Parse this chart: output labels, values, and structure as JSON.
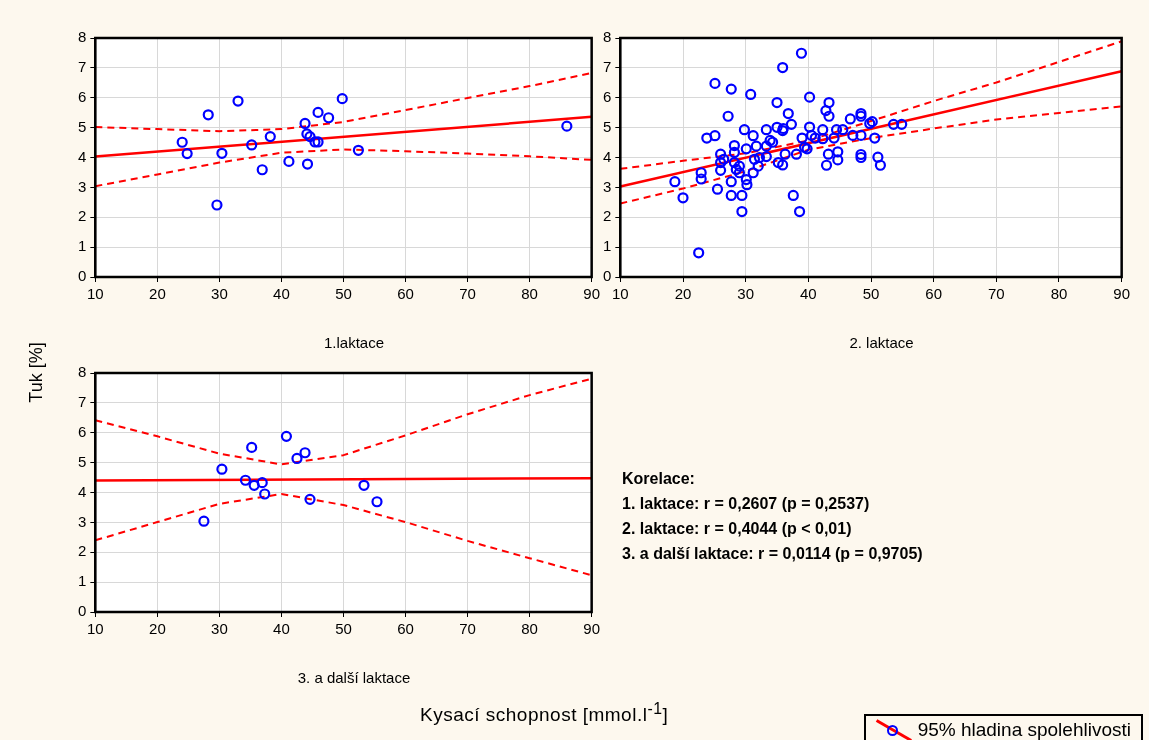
{
  "chart_data": [
    {
      "type": "scatter",
      "title": "1.laktace",
      "xlim": [
        10,
        90
      ],
      "xticks": [
        10,
        20,
        30,
        40,
        50,
        60,
        70,
        80,
        90
      ],
      "ylim": [
        0,
        8
      ],
      "yticks": [
        0,
        1,
        2,
        3,
        4,
        5,
        6,
        7,
        8
      ],
      "grid": true,
      "series": [
        {
          "type": "scatter",
          "color": "#0000ff",
          "marker": "circle",
          "x": [
            24.0,
            24.8,
            28.2,
            29.6,
            30.4,
            33.0,
            35.2,
            36.9,
            38.2,
            41.2,
            43.8,
            44.1,
            44.2,
            44.6,
            45.4,
            45.9,
            45.9,
            47.6,
            49.8,
            52.4,
            86.0
          ],
          "values": [
            4.51,
            4.13,
            5.43,
            2.41,
            4.14,
            5.89,
            4.42,
            3.59,
            4.7,
            3.87,
            5.14,
            4.79,
            3.78,
            4.7,
            4.52,
            4.52,
            5.51,
            5.33,
            5.97,
            4.24,
            5.05
          ]
        },
        {
          "type": "line",
          "color": "#ff0000",
          "marker": "none",
          "line_style": "solid",
          "x": [
            10,
            90
          ],
          "values": [
            4.03,
            5.36
          ]
        },
        {
          "type": "line",
          "color": "#ff0000",
          "marker": "none",
          "line_style": "dashed",
          "x": [
            10,
            20,
            30,
            40,
            50,
            60,
            70,
            80,
            90
          ],
          "values": [
            5.02,
            4.95,
            4.88,
            4.95,
            5.19,
            5.59,
            5.99,
            6.39,
            6.83
          ]
        },
        {
          "type": "line",
          "color": "#ff0000",
          "marker": "none",
          "line_style": "dashed",
          "x": [
            10,
            20,
            30,
            40,
            50,
            60,
            70,
            80,
            90
          ],
          "values": [
            3.04,
            3.43,
            3.83,
            4.16,
            4.27,
            4.21,
            4.13,
            4.04,
            3.92
          ]
        }
      ]
    },
    {
      "type": "scatter",
      "title": "2. laktace",
      "xlim": [
        10,
        90
      ],
      "xticks": [
        10,
        20,
        30,
        40,
        50,
        60,
        70,
        80,
        90
      ],
      "ylim": [
        0,
        8
      ],
      "yticks": [
        0,
        1,
        2,
        3,
        4,
        5,
        6,
        7,
        8
      ],
      "grid": true,
      "series": [
        {
          "type": "scatter",
          "color": "#0000ff",
          "marker": "circle",
          "x": [
            18.7,
            20.0,
            22.5,
            22.9,
            22.9,
            23.8,
            25.1,
            25.1,
            25.5,
            26.0,
            26.0,
            26.0,
            26.5,
            27.2,
            27.7,
            27.7,
            27.7,
            28.2,
            28.2,
            28.2,
            28.5,
            29.0,
            29.0,
            29.4,
            29.4,
            29.8,
            30.1,
            30.1,
            30.2,
            30.8,
            31.2,
            31.2,
            31.4,
            31.7,
            32.0,
            32.2,
            33.3,
            33.3,
            33.3,
            33.9,
            34.3,
            35.0,
            35.0,
            35.2,
            35.9,
            35.9,
            35.9,
            36.0,
            36.3,
            36.8,
            37.3,
            37.6,
            38.1,
            38.6,
            38.9,
            39.0,
            39.4,
            39.8,
            40.2,
            40.2,
            40.5,
            41.1,
            42.3,
            42.3,
            42.8,
            42.9,
            43.2,
            43.3,
            43.3,
            44.1,
            44.5,
            44.7,
            44.7,
            45.5,
            46.7,
            47.1,
            48.4,
            48.4,
            48.4,
            48.4,
            48.4,
            49.8,
            50.2,
            50.6,
            51.1,
            51.5,
            53.6,
            54.9
          ],
          "values": [
            3.19,
            2.65,
            0.81,
            3.49,
            3.28,
            4.65,
            4.73,
            6.48,
            2.94,
            4.11,
            3.83,
            3.57,
            3.94,
            5.38,
            6.29,
            3.19,
            2.73,
            4.4,
            4.17,
            3.83,
            3.6,
            3.49,
            3.71,
            2.73,
            2.19,
            4.93,
            4.29,
            3.26,
            3.09,
            6.11,
            4.73,
            3.49,
            3.94,
            4.38,
            3.71,
            4.0,
            4.93,
            4.03,
            4.38,
            4.57,
            4.51,
            5.84,
            5.01,
            3.83,
            7.01,
            4.9,
            3.75,
            4.97,
            4.11,
            5.47,
            5.11,
            2.73,
            4.11,
            2.19,
            7.49,
            4.65,
            4.34,
            4.29,
            6.02,
            5.02,
            4.74,
            4.65,
            4.93,
            4.63,
            5.57,
            3.74,
            4.11,
            5.84,
            5.38,
            4.65,
            4.93,
            4.19,
            3.92,
            4.93,
            5.29,
            4.74,
            5.47,
            5.38,
            4.74,
            4.1,
            4.0,
            5.14,
            5.2,
            4.65,
            4.01,
            3.74,
            5.11,
            5.11
          ]
        },
        {
          "type": "line",
          "color": "#ff0000",
          "marker": "none",
          "line_style": "solid",
          "x": [
            10,
            90
          ],
          "values": [
            3.03,
            6.89
          ]
        },
        {
          "type": "line",
          "color": "#ff0000",
          "marker": "none",
          "line_style": "dashed",
          "x": [
            10,
            20,
            30,
            40,
            50,
            60,
            70,
            80,
            90
          ],
          "values": [
            3.62,
            3.89,
            4.14,
            4.57,
            5.22,
            5.89,
            6.51,
            7.2,
            7.89
          ]
        },
        {
          "type": "line",
          "color": "#ff0000",
          "marker": "none",
          "line_style": "dashed",
          "x": [
            10,
            20,
            30,
            40,
            50,
            60,
            70,
            80,
            90
          ],
          "values": [
            2.46,
            2.96,
            3.54,
            4.26,
            4.65,
            4.97,
            5.27,
            5.49,
            5.71
          ]
        }
      ]
    },
    {
      "type": "scatter",
      "title": "3. a další laktace",
      "xlabel": "Kysací schopnost [mmol.l$^{-1}$]",
      "ylabel": "Tuk [%]",
      "legend": "bottom right",
      "xlim": [
        10,
        90
      ],
      "xticks": [
        10,
        20,
        30,
        40,
        50,
        60,
        70,
        80,
        90
      ],
      "ylim": [
        0,
        8
      ],
      "yticks": [
        0,
        1,
        2,
        3,
        4,
        5,
        6,
        7,
        8
      ],
      "grid": true,
      "series": [
        {
          "type": "scatter",
          "color": "#0000ff",
          "marker": "circle",
          "x": [
            27.5,
            30.4,
            34.2,
            35.2,
            35.6,
            36.9,
            37.3,
            40.8,
            42.5,
            43.8,
            44.6,
            53.3,
            55.4
          ],
          "values": [
            3.04,
            4.78,
            4.41,
            5.51,
            4.24,
            4.33,
            3.95,
            5.88,
            5.14,
            5.33,
            3.77,
            4.24,
            3.69
          ]
        },
        {
          "type": "line",
          "color": "#ff0000",
          "marker": "none",
          "line_style": "solid",
          "x": [
            10,
            90
          ],
          "values": [
            4.4,
            4.48
          ]
        },
        {
          "type": "line",
          "name": "95% hladina spolehlivosti",
          "color": "#ff0000",
          "marker": "none",
          "line_style": "dashed",
          "x": [
            10,
            20,
            30,
            40,
            50,
            60,
            70,
            80,
            90
          ],
          "values": [
            6.42,
            5.88,
            5.3,
            4.94,
            5.25,
            5.91,
            6.62,
            7.26,
            7.81
          ]
        },
        {
          "type": "line",
          "color": "#ff0000",
          "marker": "none",
          "line_style": "dashed",
          "x": [
            10,
            20,
            30,
            40,
            50,
            60,
            70,
            80,
            90
          ],
          "values": [
            2.4,
            3.01,
            3.62,
            3.95,
            3.58,
            3.01,
            2.38,
            1.8,
            1.23
          ]
        }
      ]
    },
    {
      "type": "other",
      "title": "Korelace:",
      "annotations": [
        "1. laktace: r = 0,2607 (p = 0,2537)",
        "2. laktace: r = 0,4044 (p < 0,01)",
        "3. a další laktace: r = 0,0114 (p = 0,9705)"
      ]
    }
  ]
}
